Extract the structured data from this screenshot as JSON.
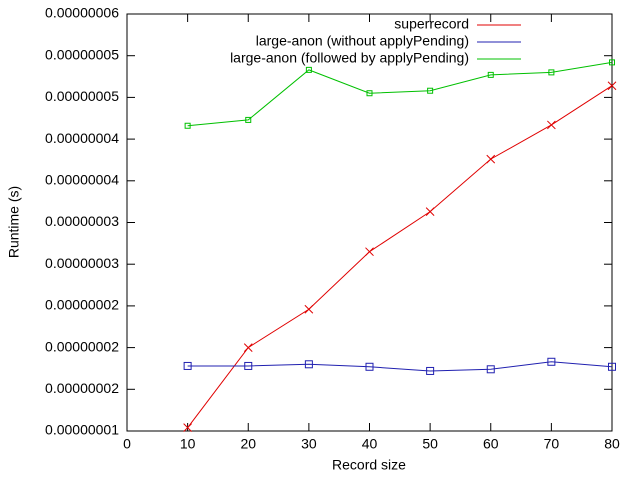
{
  "chart_data": {
    "type": "line",
    "x_label": "Record size",
    "y_label": "Runtime (s)",
    "xlim": [
      0,
      80
    ],
    "xticks": [
      0,
      10,
      20,
      30,
      40,
      50,
      60,
      70,
      80
    ],
    "ylim": [
      1e-08,
      6e-08
    ],
    "yticks": [
      {
        "value": 1e-08,
        "label": "0.00000001"
      },
      {
        "value": 1.5e-08,
        "label": "0.00000002"
      },
      {
        "value": 2e-08,
        "label": "0.00000002"
      },
      {
        "value": 2.5e-08,
        "label": "0.00000002"
      },
      {
        "value": 3e-08,
        "label": "0.00000003"
      },
      {
        "value": 3.5e-08,
        "label": "0.00000003"
      },
      {
        "value": 4e-08,
        "label": "0.00000004"
      },
      {
        "value": 4.5e-08,
        "label": "0.00000004"
      },
      {
        "value": 5e-08,
        "label": "0.00000005"
      },
      {
        "value": 5.5e-08,
        "label": "0.00000005"
      },
      {
        "value": 6e-08,
        "label": "0.00000006"
      }
    ],
    "legend": "top-right",
    "x": [
      10,
      20,
      30,
      40,
      50,
      60,
      70,
      80
    ],
    "series": [
      {
        "name": "superrecord",
        "color": "#e00000",
        "marker": "cross",
        "values": [
          1.04e-08,
          2e-08,
          2.46e-08,
          3.15e-08,
          3.63e-08,
          4.26e-08,
          4.67e-08,
          5.14e-08
        ]
      },
      {
        "name": "large-anon (without applyPending)",
        "color": "#2020b0",
        "marker": "square",
        "values": [
          1.78e-08,
          1.78e-08,
          1.8e-08,
          1.77e-08,
          1.72e-08,
          1.74e-08,
          1.83e-08,
          1.77e-08
        ]
      },
      {
        "name": "large-anon (followed by applyPending)",
        "color": "#00c000",
        "marker": "small-square",
        "values": [
          4.66e-08,
          4.73e-08,
          5.33e-08,
          5.05e-08,
          5.08e-08,
          5.27e-08,
          5.3e-08,
          5.42e-08
        ]
      }
    ]
  }
}
